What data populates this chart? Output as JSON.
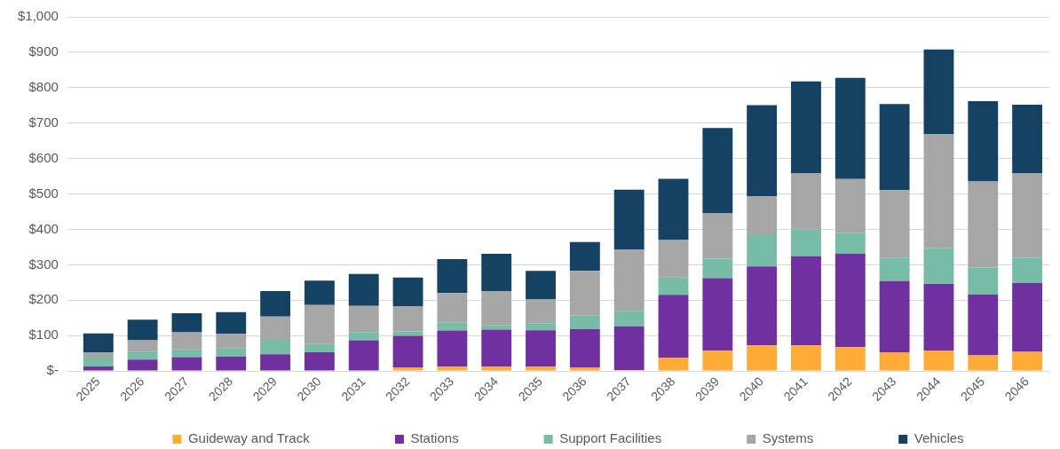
{
  "chart_data": {
    "type": "bar",
    "stacked": true,
    "categories": [
      "2025",
      "2026",
      "2027",
      "2028",
      "2029",
      "2030",
      "2031",
      "2032",
      "2033",
      "2034",
      "2035",
      "2036",
      "2037",
      "2038",
      "2039",
      "2040",
      "2041",
      "2042",
      "2043",
      "2044",
      "2045",
      "2046"
    ],
    "series": [
      {
        "name": "Guideway and Track",
        "color": "#ffab37",
        "values": [
          0,
          0,
          0,
          0,
          0,
          0,
          0,
          10,
          12,
          12,
          12,
          10,
          3,
          38,
          57,
          72,
          72,
          67,
          53,
          58,
          44,
          54
        ]
      },
      {
        "name": "Stations",
        "color": "#7030a0",
        "values": [
          13,
          32,
          39,
          41,
          47,
          53,
          87,
          89,
          102,
          105,
          103,
          108,
          123,
          177,
          205,
          223,
          252,
          264,
          201,
          188,
          172,
          194
        ]
      },
      {
        "name": "Support Facilities",
        "color": "#76bca6",
        "values": [
          25,
          23,
          22,
          24,
          41,
          23,
          23,
          13,
          22,
          13,
          20,
          38,
          43,
          49,
          55,
          91,
          76,
          58,
          65,
          101,
          76,
          72
        ]
      },
      {
        "name": "Systems",
        "color": "#a6a6a6",
        "values": [
          15,
          32,
          48,
          40,
          66,
          110,
          74,
          71,
          84,
          96,
          67,
          127,
          173,
          106,
          128,
          108,
          158,
          153,
          192,
          322,
          243,
          238
        ]
      },
      {
        "name": "Vehicles",
        "color": "#154263",
        "values": [
          53,
          58,
          54,
          61,
          72,
          69,
          90,
          81,
          96,
          105,
          81,
          81,
          170,
          173,
          241,
          257,
          260,
          286,
          243,
          239,
          227,
          194
        ]
      }
    ],
    "ylim": [
      0,
      1000
    ],
    "yticks": [
      {
        "value": 0,
        "label": "$-"
      },
      {
        "value": 100,
        "label": "$100"
      },
      {
        "value": 200,
        "label": "$200"
      },
      {
        "value": 300,
        "label": "$300"
      },
      {
        "value": 400,
        "label": "$400"
      },
      {
        "value": 500,
        "label": "$500"
      },
      {
        "value": 600,
        "label": "$600"
      },
      {
        "value": 700,
        "label": "$700"
      },
      {
        "value": 800,
        "label": "$800"
      },
      {
        "value": 900,
        "label": "$900"
      },
      {
        "value": 1000,
        "label": "$1,000"
      }
    ],
    "grid": "y",
    "legend": "bottom"
  }
}
